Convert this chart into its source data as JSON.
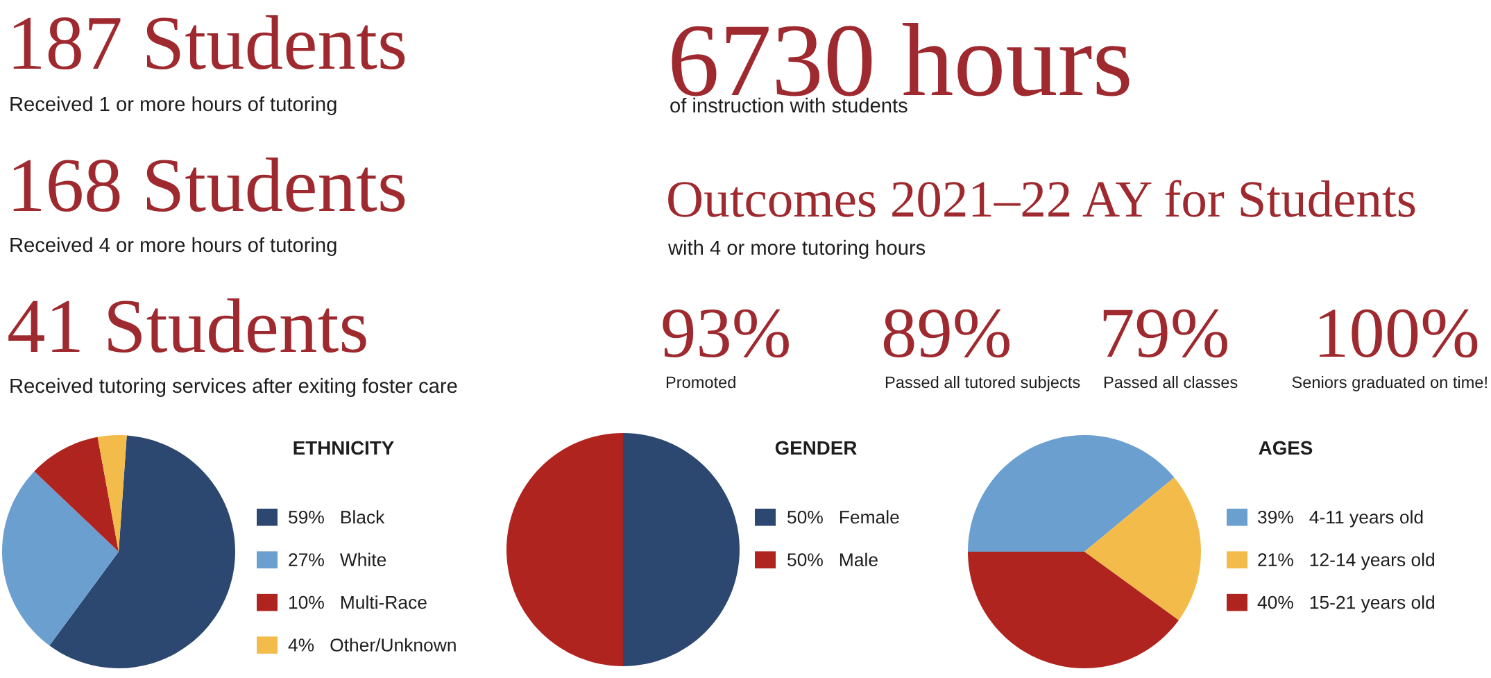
{
  "chart_data": [
    {
      "type": "other",
      "annotations": [
        "187 Students",
        "Received 1 or more hours of tutoring",
        "168 Students",
        "Received 4 or more hours of tutoring",
        "41 Students",
        "Received tutoring services after exiting foster care",
        "6730 hours",
        "of instruction with students",
        "Outcomes 2021–22 AY for Students",
        "with 4 or more tutoring hours",
        "93%",
        "Promoted",
        "89%",
        "Passed all tutored subjects",
        "79%",
        "Passed all classes",
        "100%",
        "Seniors graduated on time!"
      ]
    },
    {
      "type": "pie",
      "title": "ETHNICITY",
      "categories": [
        "Black",
        "White",
        "Multi-Race",
        "Other/Unknown"
      ],
      "values": [
        59,
        27,
        10,
        4
      ],
      "value_labels": [
        "59%",
        "27%",
        "10%",
        "4%"
      ],
      "colors": [
        "#2c4770",
        "#6a9fd0",
        "#b02420",
        "#f2bb4a"
      ],
      "legend": "right"
    },
    {
      "type": "pie",
      "title": "GENDER",
      "categories": [
        "Female",
        "Male"
      ],
      "values": [
        50,
        50
      ],
      "value_labels": [
        "50%",
        "50%"
      ],
      "colors": [
        "#2c4770",
        "#b02420"
      ],
      "legend": "right"
    },
    {
      "type": "pie",
      "title": "AGES",
      "categories": [
        "4-11 years old",
        "12-14 years old",
        "15-21 years old"
      ],
      "values": [
        39,
        21,
        40
      ],
      "value_labels": [
        "39%",
        "21%",
        "40%"
      ],
      "colors": [
        "#6a9fd0",
        "#f2bb4a",
        "#b02420"
      ],
      "legend": "right"
    }
  ]
}
